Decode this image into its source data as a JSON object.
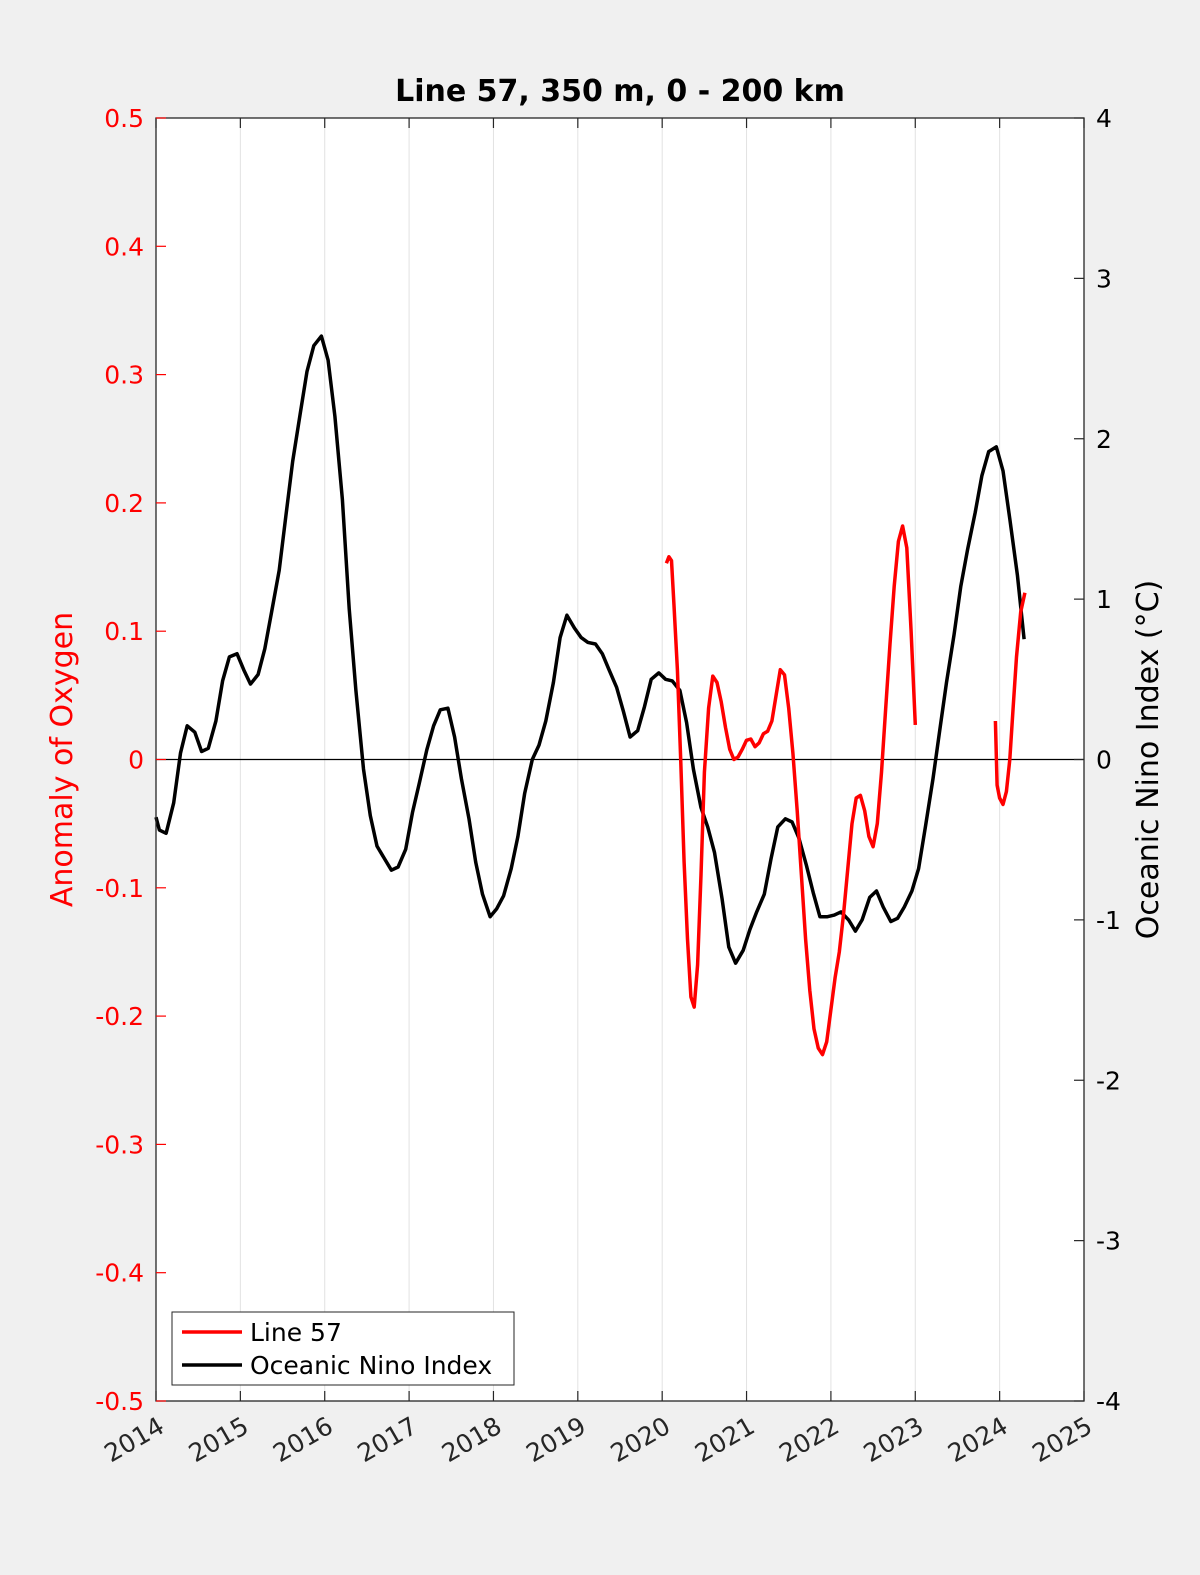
{
  "chart_data": {
    "type": "line",
    "title": "Line 57, 350 m, 0 - 200 km",
    "ylabel_left": "Anomaly of Oxygen",
    "ylabel_right": "Oceanic Nino Index (°C)",
    "xlim": [
      2014,
      2025
    ],
    "ylim_left": [
      -0.5,
      0.5
    ],
    "ylim_right": [
      -4,
      4
    ],
    "x_ticks": [
      "2014",
      "2015",
      "2016",
      "2017",
      "2018",
      "2019",
      "2020",
      "2021",
      "2022",
      "2023",
      "2024",
      "2025"
    ],
    "y_left_ticks": [
      "-0.5",
      "-0.4",
      "-0.3",
      "-0.2",
      "-0.1",
      "0",
      "0.1",
      "0.2",
      "0.3",
      "0.4",
      "0.5"
    ],
    "y_right_ticks": [
      "-4",
      "-3",
      "-2",
      "-1",
      "0",
      "1",
      "2",
      "3",
      "4"
    ],
    "grid": "vertical",
    "legend_position": "bottom-left",
    "colors": {
      "line57": "#ff0000",
      "oni": "#000000",
      "left_axis": "#ff0000"
    },
    "series": [
      {
        "name": "Line 57",
        "axis": "left",
        "color": "#ff0000",
        "segments": [
          [
            [
              2020.05,
              0.153
            ],
            [
              2020.08,
              0.158
            ],
            [
              2020.11,
              0.155
            ],
            [
              2020.14,
              0.12
            ],
            [
              2020.18,
              0.07
            ],
            [
              2020.22,
              0.0
            ],
            [
              2020.26,
              -0.08
            ],
            [
              2020.3,
              -0.14
            ],
            [
              2020.34,
              -0.185
            ],
            [
              2020.38,
              -0.193
            ],
            [
              2020.42,
              -0.16
            ],
            [
              2020.46,
              -0.09
            ],
            [
              2020.5,
              -0.01
            ],
            [
              2020.55,
              0.04
            ],
            [
              2020.6,
              0.065
            ],
            [
              2020.65,
              0.06
            ],
            [
              2020.7,
              0.045
            ],
            [
              2020.75,
              0.025
            ],
            [
              2020.8,
              0.008
            ],
            [
              2020.85,
              0.0
            ],
            [
              2020.9,
              0.002
            ],
            [
              2020.95,
              0.008
            ],
            [
              2021.0,
              0.015
            ],
            [
              2021.05,
              0.016
            ],
            [
              2021.1,
              0.01
            ],
            [
              2021.15,
              0.013
            ],
            [
              2021.2,
              0.02
            ],
            [
              2021.25,
              0.022
            ],
            [
              2021.3,
              0.03
            ],
            [
              2021.35,
              0.05
            ],
            [
              2021.4,
              0.07
            ],
            [
              2021.45,
              0.066
            ],
            [
              2021.5,
              0.04
            ],
            [
              2021.55,
              0.005
            ],
            [
              2021.6,
              -0.04
            ],
            [
              2021.65,
              -0.09
            ],
            [
              2021.7,
              -0.14
            ],
            [
              2021.75,
              -0.18
            ],
            [
              2021.8,
              -0.21
            ],
            [
              2021.85,
              -0.225
            ],
            [
              2021.9,
              -0.23
            ],
            [
              2021.95,
              -0.22
            ],
            [
              2022.0,
              -0.195
            ],
            [
              2022.05,
              -0.17
            ],
            [
              2022.1,
              -0.15
            ],
            [
              2022.15,
              -0.12
            ],
            [
              2022.2,
              -0.085
            ],
            [
              2022.25,
              -0.05
            ],
            [
              2022.3,
              -0.03
            ],
            [
              2022.35,
              -0.028
            ],
            [
              2022.4,
              -0.04
            ],
            [
              2022.45,
              -0.06
            ],
            [
              2022.5,
              -0.068
            ],
            [
              2022.55,
              -0.05
            ],
            [
              2022.6,
              -0.01
            ],
            [
              2022.65,
              0.04
            ],
            [
              2022.7,
              0.09
            ],
            [
              2022.75,
              0.135
            ],
            [
              2022.8,
              0.17
            ],
            [
              2022.85,
              0.182
            ],
            [
              2022.9,
              0.165
            ],
            [
              2022.95,
              0.1
            ],
            [
              2023.0,
              0.027
            ]
          ],
          [
            [
              2023.95,
              0.03
            ],
            [
              2023.97,
              -0.02
            ],
            [
              2024.0,
              -0.03
            ],
            [
              2024.04,
              -0.035
            ],
            [
              2024.08,
              -0.025
            ],
            [
              2024.12,
              0.0
            ],
            [
              2024.16,
              0.04
            ],
            [
              2024.2,
              0.08
            ],
            [
              2024.25,
              0.115
            ],
            [
              2024.3,
              0.13
            ]
          ]
        ]
      },
      {
        "name": "Oceanic Nino Index",
        "axis": "right",
        "color": "#000000",
        "segments": [
          [
            [
              2014.0,
              -0.36
            ],
            [
              2014.04,
              -0.44
            ],
            [
              2014.12,
              -0.46
            ],
            [
              2014.21,
              -0.27
            ],
            [
              2014.29,
              0.04
            ],
            [
              2014.37,
              0.21
            ],
            [
              2014.46,
              0.17
            ],
            [
              2014.54,
              0.05
            ],
            [
              2014.62,
              0.07
            ],
            [
              2014.71,
              0.24
            ],
            [
              2014.79,
              0.49
            ],
            [
              2014.87,
              0.64
            ],
            [
              2014.96,
              0.66
            ],
            [
              2015.04,
              0.56
            ],
            [
              2015.12,
              0.47
            ],
            [
              2015.21,
              0.53
            ],
            [
              2015.29,
              0.69
            ],
            [
              2015.37,
              0.92
            ],
            [
              2015.46,
              1.18
            ],
            [
              2015.54,
              1.52
            ],
            [
              2015.62,
              1.86
            ],
            [
              2015.71,
              2.16
            ],
            [
              2015.79,
              2.42
            ],
            [
              2015.87,
              2.58
            ],
            [
              2015.96,
              2.64
            ],
            [
              2016.04,
              2.49
            ],
            [
              2016.12,
              2.14
            ],
            [
              2016.21,
              1.62
            ],
            [
              2016.29,
              0.94
            ],
            [
              2016.37,
              0.43
            ],
            [
              2016.46,
              -0.06
            ],
            [
              2016.54,
              -0.35
            ],
            [
              2016.62,
              -0.54
            ],
            [
              2016.71,
              -0.62
            ],
            [
              2016.79,
              -0.69
            ],
            [
              2016.87,
              -0.67
            ],
            [
              2016.96,
              -0.56
            ],
            [
              2017.04,
              -0.33
            ],
            [
              2017.12,
              -0.15
            ],
            [
              2017.21,
              0.06
            ],
            [
              2017.29,
              0.21
            ],
            [
              2017.37,
              0.31
            ],
            [
              2017.46,
              0.32
            ],
            [
              2017.54,
              0.14
            ],
            [
              2017.62,
              -0.12
            ],
            [
              2017.71,
              -0.37
            ],
            [
              2017.79,
              -0.64
            ],
            [
              2017.87,
              -0.84
            ],
            [
              2017.96,
              -0.98
            ],
            [
              2018.04,
              -0.93
            ],
            [
              2018.12,
              -0.85
            ],
            [
              2018.21,
              -0.68
            ],
            [
              2018.29,
              -0.48
            ],
            [
              2018.37,
              -0.21
            ],
            [
              2018.46,
              0.0
            ],
            [
              2018.54,
              0.09
            ],
            [
              2018.62,
              0.24
            ],
            [
              2018.71,
              0.48
            ],
            [
              2018.79,
              0.76
            ],
            [
              2018.87,
              0.9
            ],
            [
              2018.96,
              0.82
            ],
            [
              2019.04,
              0.76
            ],
            [
              2019.12,
              0.73
            ],
            [
              2019.21,
              0.72
            ],
            [
              2019.29,
              0.66
            ],
            [
              2019.37,
              0.56
            ],
            [
              2019.46,
              0.45
            ],
            [
              2019.54,
              0.3
            ],
            [
              2019.62,
              0.14
            ],
            [
              2019.71,
              0.18
            ],
            [
              2019.79,
              0.33
            ],
            [
              2019.87,
              0.5
            ],
            [
              2019.96,
              0.54
            ],
            [
              2020.04,
              0.5
            ],
            [
              2020.12,
              0.49
            ],
            [
              2020.21,
              0.43
            ],
            [
              2020.29,
              0.23
            ],
            [
              2020.37,
              -0.06
            ],
            [
              2020.46,
              -0.3
            ],
            [
              2020.54,
              -0.42
            ],
            [
              2020.62,
              -0.58
            ],
            [
              2020.71,
              -0.87
            ],
            [
              2020.79,
              -1.17
            ],
            [
              2020.87,
              -1.27
            ],
            [
              2020.96,
              -1.19
            ],
            [
              2021.04,
              -1.06
            ],
            [
              2021.12,
              -0.95
            ],
            [
              2021.21,
              -0.84
            ],
            [
              2021.29,
              -0.62
            ],
            [
              2021.37,
              -0.42
            ],
            [
              2021.46,
              -0.37
            ],
            [
              2021.54,
              -0.39
            ],
            [
              2021.62,
              -0.49
            ],
            [
              2021.71,
              -0.66
            ],
            [
              2021.79,
              -0.83
            ],
            [
              2021.87,
              -0.98
            ],
            [
              2021.96,
              -0.98
            ],
            [
              2022.04,
              -0.97
            ],
            [
              2022.12,
              -0.95
            ],
            [
              2022.21,
              -1.0
            ],
            [
              2022.29,
              -1.07
            ],
            [
              2022.37,
              -1.0
            ],
            [
              2022.46,
              -0.86
            ],
            [
              2022.54,
              -0.82
            ],
            [
              2022.62,
              -0.92
            ],
            [
              2022.71,
              -1.01
            ],
            [
              2022.79,
              -0.99
            ],
            [
              2022.87,
              -0.92
            ],
            [
              2022.96,
              -0.82
            ],
            [
              2023.04,
              -0.68
            ],
            [
              2023.12,
              -0.42
            ],
            [
              2023.21,
              -0.12
            ],
            [
              2023.29,
              0.18
            ],
            [
              2023.37,
              0.48
            ],
            [
              2023.46,
              0.78
            ],
            [
              2023.54,
              1.08
            ],
            [
              2023.62,
              1.31
            ],
            [
              2023.71,
              1.54
            ],
            [
              2023.79,
              1.77
            ],
            [
              2023.87,
              1.92
            ],
            [
              2023.96,
              1.95
            ],
            [
              2024.04,
              1.8
            ],
            [
              2024.12,
              1.5
            ],
            [
              2024.21,
              1.15
            ],
            [
              2024.29,
              0.75
            ]
          ]
        ]
      }
    ]
  }
}
